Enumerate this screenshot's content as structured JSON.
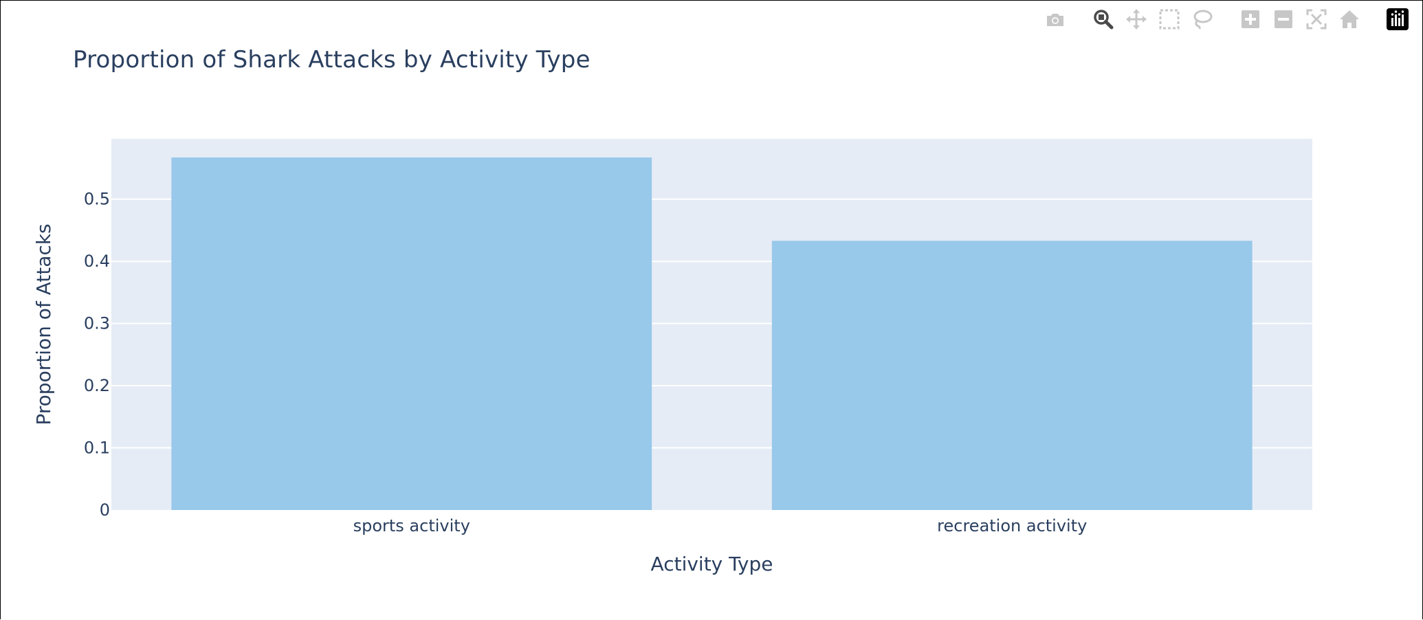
{
  "modebar": {
    "buttons": [
      {
        "icon": "camera-icon",
        "group": 0
      },
      {
        "icon": "zoom-icon",
        "group": 1,
        "active": true
      },
      {
        "icon": "pan-icon",
        "group": 1
      },
      {
        "icon": "box-select-icon",
        "group": 1
      },
      {
        "icon": "lasso-select-icon",
        "group": 1
      },
      {
        "icon": "zoom-in-icon",
        "group": 2
      },
      {
        "icon": "zoom-out-icon",
        "group": 2
      },
      {
        "icon": "autoscale-icon",
        "group": 2
      },
      {
        "icon": "reset-axes-icon",
        "group": 2
      },
      {
        "icon": "plotly-logo-icon",
        "group": 3
      }
    ],
    "icon_color": "#c7c7c7",
    "active_color": "#4a4a4a"
  },
  "chart_data": {
    "type": "bar",
    "title": "Proportion of Shark Attacks by Activity Type",
    "xlabel": "Activity Type",
    "ylabel": "Proportion of Attacks",
    "categories": [
      "sports activity",
      "recreation activity"
    ],
    "values": [
      0.567,
      0.433
    ],
    "ylim": [
      0,
      0.597
    ],
    "yticks": [
      0,
      0.1,
      0.2,
      0.3,
      0.4,
      0.5
    ],
    "ytick_labels": [
      "0",
      "0.1",
      "0.2",
      "0.3",
      "0.4",
      "0.5"
    ],
    "grid": true,
    "legend": "none",
    "colors": {
      "bar": "#98c8ea",
      "plot_bg": "#e5ecf6",
      "grid": "#ffffff",
      "text": "#2a3f5f"
    }
  }
}
